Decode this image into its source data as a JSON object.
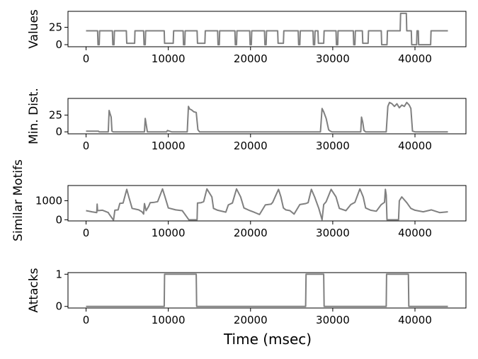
{
  "figure": {
    "xlabel": "Time (msec)",
    "shared_ylabel": "Similar Motifs"
  },
  "chart_data": [
    {
      "type": "line",
      "ylabel": "Values",
      "xlim": [
        -2200,
        46200
      ],
      "ylim": [
        -3,
        48
      ],
      "xticks": [
        0,
        10000,
        20000,
        30000,
        40000
      ],
      "yticks": [
        0,
        25
      ],
      "color": "#808080",
      "series": [
        {
          "x": [
            0,
            1400,
            1450,
            1600,
            1650,
            3200,
            3250,
            3400,
            3450,
            4900,
            4950,
            5900,
            5950,
            7000,
            7050,
            7200,
            7250,
            9500,
            9550,
            10600,
            10650,
            11800,
            11850,
            12000,
            12050,
            13500,
            13550,
            14450,
            14500,
            16000,
            16050,
            16200,
            16250,
            18100,
            18150,
            18300,
            18350,
            19900,
            19950,
            20100,
            20150,
            21700,
            21750,
            21900,
            21950,
            23300,
            23350,
            24000,
            24050,
            25800,
            25850,
            26000,
            26050,
            27600,
            27650,
            27800,
            27850,
            28200,
            28250,
            28900,
            28950,
            30400,
            30450,
            30600,
            30650,
            32500,
            32550,
            32700,
            32750,
            33600,
            33650,
            34300,
            34350,
            35900,
            35950,
            36600,
            36650,
            38200,
            38250,
            38950,
            39000,
            39550,
            39600,
            40200,
            40250,
            40400,
            40450,
            41900,
            41950,
            42100,
            42150,
            44000
          ],
          "y": [
            20,
            20,
            0,
            0,
            20,
            20,
            0,
            0,
            20,
            20,
            2,
            2,
            20,
            20,
            0,
            0,
            20,
            20,
            2,
            2,
            20,
            20,
            0,
            0,
            20,
            20,
            2,
            2,
            20,
            20,
            0,
            0,
            20,
            20,
            0,
            0,
            20,
            20,
            0,
            0,
            20,
            20,
            0,
            0,
            20,
            20,
            2,
            2,
            20,
            20,
            0,
            0,
            20,
            20,
            0,
            0,
            20,
            20,
            2,
            2,
            20,
            20,
            0,
            0,
            20,
            20,
            0,
            0,
            20,
            20,
            2,
            2,
            20,
            20,
            0,
            0,
            20,
            20,
            45,
            45,
            20,
            20,
            0,
            0,
            20,
            20,
            0,
            0,
            20,
            20,
            20,
            20
          ]
        }
      ]
    },
    {
      "type": "line",
      "ylabel": "Min. Dist.",
      "xlim": [
        -2200,
        46200
      ],
      "ylim": [
        -3,
        50
      ],
      "xticks": [
        0,
        10000,
        20000,
        30000,
        40000
      ],
      "yticks": [
        0,
        25
      ],
      "color": "#808080",
      "series": [
        {
          "x": [
            0,
            1500,
            1600,
            2700,
            2800,
            2900,
            3050,
            3150,
            3300,
            3500,
            7100,
            7200,
            7300,
            7450,
            9800,
            9900,
            10400,
            12300,
            12450,
            12600,
            12800,
            13100,
            13400,
            13600,
            13800,
            28500,
            28700,
            28900,
            29200,
            29500,
            29700,
            29900,
            33400,
            33500,
            33650,
            33800,
            34000,
            36500,
            36700,
            36900,
            37200,
            37500,
            37800,
            38100,
            38400,
            38700,
            39000,
            39300,
            39500,
            39700,
            40000,
            44000
          ],
          "y": [
            1,
            1,
            0,
            0,
            32,
            28,
            22,
            1,
            0,
            0,
            0,
            20,
            12,
            0,
            0,
            2,
            0,
            0,
            38,
            34,
            33,
            30,
            29,
            3,
            0,
            0,
            35,
            30,
            20,
            3,
            1,
            0,
            0,
            22,
            14,
            2,
            0,
            0,
            38,
            44,
            42,
            38,
            42,
            36,
            40,
            38,
            44,
            40,
            35,
            1,
            0,
            0
          ]
        }
      ]
    },
    {
      "type": "line",
      "ylabel": "",
      "xlim": [
        -2200,
        46200
      ],
      "ylim": [
        -60,
        1800
      ],
      "xticks": [
        0,
        10000,
        20000,
        30000,
        40000
      ],
      "yticks": [
        0,
        1000
      ],
      "color": "#808080",
      "series": [
        {
          "x": [
            0,
            700,
            1300,
            1350,
            1400,
            2000,
            2700,
            2800,
            3300,
            3350,
            3500,
            3900,
            4100,
            4500,
            4950,
            5200,
            5600,
            6400,
            6800,
            7000,
            7100,
            7300,
            7600,
            7800,
            8300,
            8700,
            9300,
            9600,
            10000,
            10900,
            11700,
            12000,
            12500,
            13100,
            13200,
            13500,
            13550,
            14000,
            14300,
            14700,
            15300,
            15500,
            16000,
            17000,
            17300,
            17800,
            18300,
            18800,
            19200,
            19800,
            20300,
            20700,
            21100,
            21800,
            22500,
            22700,
            23400,
            23700,
            24000,
            24300,
            24800,
            25300,
            26000,
            26700,
            27000,
            27400,
            27800,
            28300,
            28700,
            28900,
            29200,
            29800,
            30400,
            30800,
            31600,
            32200,
            32700,
            33300,
            33700,
            34000,
            34600,
            35300,
            35900,
            36300,
            36400,
            36500,
            36600,
            37500,
            38000,
            38100,
            38400,
            39000,
            39500,
            40000,
            41000,
            42000,
            43000,
            44000
          ],
          "y": [
            480,
            420,
            380,
            820,
            480,
            500,
            380,
            300,
            0,
            0,
            500,
            520,
            860,
            880,
            1600,
            1200,
            600,
            520,
            420,
            300,
            850,
            480,
            700,
            900,
            920,
            950,
            1620,
            1200,
            620,
            520,
            480,
            300,
            0,
            0,
            0,
            0,
            880,
            900,
            950,
            1620,
            1200,
            600,
            500,
            400,
            780,
            880,
            1620,
            1200,
            620,
            500,
            420,
            350,
            280,
            780,
            820,
            920,
            1600,
            1200,
            620,
            520,
            480,
            300,
            800,
            850,
            900,
            1600,
            1200,
            600,
            0,
            800,
            950,
            1600,
            1200,
            600,
            480,
            800,
            920,
            1620,
            1200,
            620,
            500,
            450,
            800,
            920,
            1600,
            1300,
            0,
            0,
            0,
            1000,
            1200,
            900,
            600,
            500,
            420,
            520,
            380,
            420
          ]
        }
      ]
    },
    {
      "type": "line",
      "ylabel": "Attacks",
      "xlim": [
        -2200,
        46200
      ],
      "ylim": [
        -0.05,
        1.05
      ],
      "xticks": [
        0,
        10000,
        20000,
        30000,
        40000
      ],
      "yticks": [
        0,
        1
      ],
      "color": "#808080",
      "series": [
        {
          "x": [
            0,
            9500,
            9550,
            13400,
            13450,
            26700,
            26750,
            28900,
            28950,
            36500,
            36550,
            39200,
            39250,
            44000
          ],
          "y": [
            0,
            0,
            1,
            1,
            0,
            0,
            1,
            1,
            0,
            0,
            1,
            1,
            0,
            0
          ]
        }
      ]
    }
  ]
}
